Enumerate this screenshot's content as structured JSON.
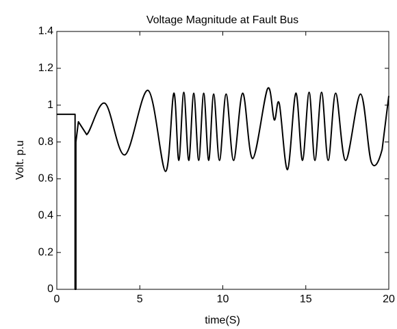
{
  "chart_data": {
    "type": "line",
    "title": "Voltage Magnitude at Fault Bus",
    "x_label": "time(S)",
    "y_label": "Volt. p.u",
    "xlim": [
      0,
      20
    ],
    "xticks": [
      0,
      5,
      10,
      15,
      20
    ],
    "ylim": [
      0,
      1.4
    ],
    "yticks": [
      0,
      0.2,
      0.4,
      0.6,
      0.8,
      1,
      1.2,
      1.4
    ],
    "grid": false,
    "series": [
      {
        "color": "#000000",
        "x": [
          0,
          1.1,
          1.1,
          1.15,
          1.15,
          1.3,
          1.8,
          2.9,
          4.1,
          5.5,
          6.55,
          7.05,
          7.35,
          7.65,
          7.95,
          8.25,
          8.55,
          8.85,
          9.15,
          9.45,
          9.8,
          10.2,
          10.65,
          11.2,
          11.8,
          12.7,
          13.1,
          13.4,
          13.9,
          14.4,
          14.8,
          15.2,
          15.55,
          15.95,
          16.35,
          16.8,
          17.4,
          18.3,
          18.95,
          19.6,
          20
        ],
        "values": [
          0.95,
          0.95,
          0,
          0,
          0.8,
          0.91,
          0.84,
          1.01,
          0.73,
          1.08,
          0.64,
          1.065,
          0.7,
          1.07,
          0.7,
          1.065,
          0.7,
          1.065,
          0.7,
          1.06,
          0.7,
          1.06,
          0.7,
          1.065,
          0.71,
          1.09,
          0.92,
          1.01,
          0.65,
          1.065,
          0.7,
          1.07,
          0.7,
          1.07,
          0.7,
          1.065,
          0.7,
          1.06,
          0.69,
          0.76,
          1.05
        ]
      }
    ]
  }
}
